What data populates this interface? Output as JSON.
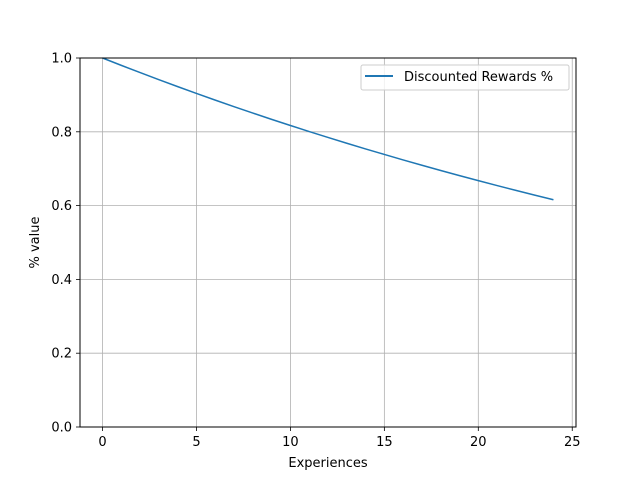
{
  "chart_data": {
    "type": "line",
    "title": "",
    "xlabel": "Experiences",
    "ylabel": "% value",
    "xlim": [
      -1.2,
      25.2
    ],
    "ylim": [
      0.0,
      1.0
    ],
    "xticks": [
      0,
      5,
      10,
      15,
      20,
      25
    ],
    "xtick_labels": [
      "0",
      "5",
      "10",
      "15",
      "20",
      "25"
    ],
    "yticks": [
      0.0,
      0.2,
      0.4,
      0.6,
      0.8,
      1.0
    ],
    "ytick_labels": [
      "0.0",
      "0.2",
      "0.4",
      "0.6",
      "0.8",
      "1.0"
    ],
    "grid": true,
    "legend_position": "top-right",
    "series": [
      {
        "name": "Discounted Rewards %",
        "color": "#1f77b4",
        "x": [
          0,
          1,
          2,
          3,
          4,
          5,
          6,
          7,
          8,
          9,
          10,
          11,
          12,
          13,
          14,
          15,
          16,
          17,
          18,
          19,
          20,
          21,
          22,
          23,
          24
        ],
        "y": [
          1.0,
          0.98,
          0.9604,
          0.9412,
          0.9224,
          0.9039,
          0.8858,
          0.8681,
          0.8508,
          0.8337,
          0.8171,
          0.8007,
          0.7847,
          0.769,
          0.7536,
          0.7386,
          0.7238,
          0.7093,
          0.6951,
          0.6812,
          0.6676,
          0.6543,
          0.6412,
          0.6283,
          0.6158
        ]
      }
    ]
  }
}
